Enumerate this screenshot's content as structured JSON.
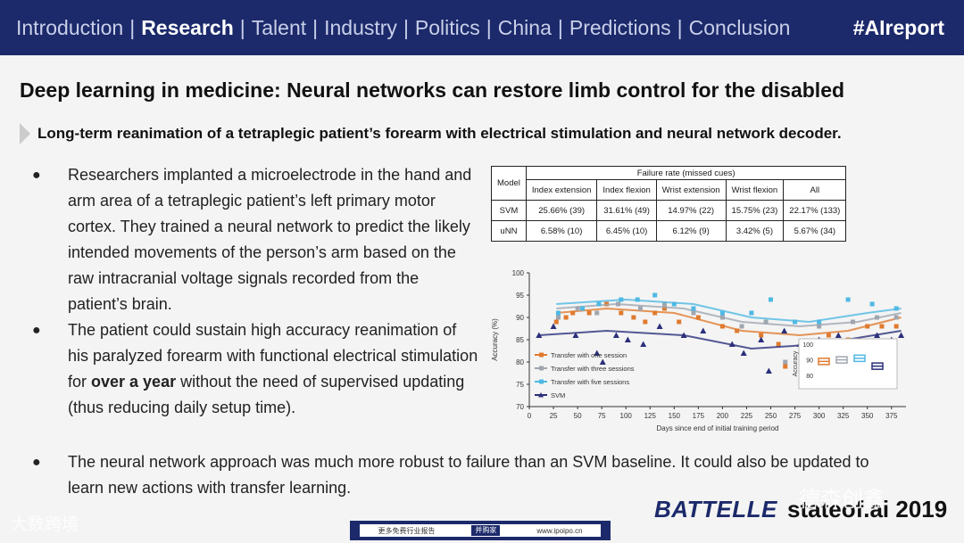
{
  "nav": {
    "items": [
      {
        "label": "Introduction",
        "active": false
      },
      {
        "label": "Research",
        "active": true
      },
      {
        "label": "Talent",
        "active": false
      },
      {
        "label": "Industry",
        "active": false
      },
      {
        "label": "Politics",
        "active": false
      },
      {
        "label": "China",
        "active": false
      },
      {
        "label": "Predictions",
        "active": false
      },
      {
        "label": "Conclusion",
        "active": false
      }
    ],
    "hashtag": "#AIreport"
  },
  "title": "Deep learning in medicine: Neural networks can restore limb control for the disabled",
  "subtitle": "Long-term reanimation of a tetraplegic patient’s forearm with electrical stimulation and neural network decoder.",
  "bullets": [
    {
      "text": "Researchers implanted a microelectrode in the hand and arm area of a tetraplegic patient’s left primary motor cortex. They trained a neural network to predict the likely intended movements of the person’s arm based on the raw intracranial voltage signals recorded from the patient’s brain."
    },
    {
      "pre": "The patient could sustain high accuracy reanimation of his paralyzed forearm with functional electrical stimulation for ",
      "bold": "over a year",
      "post": " without the need of supervised updating (thus reducing daily setup time)."
    },
    {
      "text": "The neural network approach was much more robust to failure than an SVM baseline. It could also be updated to learn new actions with transfer learning."
    }
  ],
  "table": {
    "model_header": "Model",
    "group_header": "Failure rate (missed cues)",
    "columns": [
      "Index extension",
      "Index flexion",
      "Wrist extension",
      "Wrist flexion",
      "All"
    ],
    "rows": [
      {
        "model": "SVM",
        "values": [
          "25.66% (39)",
          "31.61% (49)",
          "14.97% (22)",
          "15.75% (23)",
          "22.17% (133)"
        ]
      },
      {
        "model": "uNN",
        "values": [
          "6.58% (10)",
          "6.45% (10)",
          "6.12% (9)",
          "3.42% (5)",
          "5.67% (34)"
        ]
      }
    ]
  },
  "chart_data": {
    "type": "scatter",
    "xlabel": "Days since end of initial training period",
    "ylabel": "Accuracy (%)",
    "xticks": [
      0,
      25,
      50,
      75,
      100,
      125,
      150,
      175,
      200,
      225,
      250,
      275,
      300,
      325,
      350,
      375
    ],
    "yticks": [
      70,
      75,
      80,
      85,
      90,
      95,
      100
    ],
    "xlim": [
      0,
      390
    ],
    "ylim": [
      70,
      100
    ],
    "series": [
      {
        "name": "Transfer with one session",
        "color": "#e07a2e",
        "points": [
          [
            28,
            89
          ],
          [
            38,
            90
          ],
          [
            45,
            91
          ],
          [
            62,
            91
          ],
          [
            80,
            93
          ],
          [
            95,
            91
          ],
          [
            108,
            90
          ],
          [
            120,
            89
          ],
          [
            130,
            91
          ],
          [
            140,
            92
          ],
          [
            155,
            89
          ],
          [
            175,
            90
          ],
          [
            200,
            88
          ],
          [
            215,
            87
          ],
          [
            240,
            86
          ],
          [
            258,
            84
          ],
          [
            265,
            79
          ],
          [
            285,
            84
          ],
          [
            310,
            86
          ],
          [
            330,
            85
          ],
          [
            350,
            88
          ],
          [
            365,
            88
          ],
          [
            380,
            88
          ]
        ],
        "trend": [
          [
            28,
            91
          ],
          [
            80,
            92
          ],
          [
            150,
            91
          ],
          [
            220,
            87
          ],
          [
            280,
            86
          ],
          [
            330,
            87
          ],
          [
            385,
            90
          ]
        ]
      },
      {
        "name": "Transfer with three sessions",
        "color": "#a0a6b0",
        "points": [
          [
            30,
            90
          ],
          [
            50,
            92
          ],
          [
            70,
            91
          ],
          [
            92,
            93
          ],
          [
            115,
            92
          ],
          [
            140,
            93
          ],
          [
            170,
            91
          ],
          [
            200,
            90
          ],
          [
            220,
            88
          ],
          [
            245,
            89
          ],
          [
            265,
            80
          ],
          [
            300,
            88
          ],
          [
            335,
            89
          ],
          [
            360,
            90
          ],
          [
            380,
            90
          ]
        ],
        "trend": [
          [
            28,
            92
          ],
          [
            90,
            93
          ],
          [
            160,
            92
          ],
          [
            220,
            89
          ],
          [
            280,
            88
          ],
          [
            340,
            89
          ],
          [
            385,
            91
          ]
        ]
      },
      {
        "name": "Transfer with five sessions",
        "color": "#4fb9e3",
        "points": [
          [
            30,
            91
          ],
          [
            55,
            92
          ],
          [
            72,
            93
          ],
          [
            95,
            94
          ],
          [
            112,
            94
          ],
          [
            130,
            95
          ],
          [
            150,
            93
          ],
          [
            170,
            92
          ],
          [
            200,
            91
          ],
          [
            230,
            91
          ],
          [
            250,
            94
          ],
          [
            275,
            89
          ],
          [
            300,
            89
          ],
          [
            330,
            94
          ],
          [
            355,
            93
          ],
          [
            380,
            92
          ]
        ],
        "trend": [
          [
            28,
            93
          ],
          [
            100,
            94
          ],
          [
            170,
            93
          ],
          [
            230,
            90
          ],
          [
            290,
            89
          ],
          [
            350,
            91
          ],
          [
            385,
            92
          ]
        ]
      },
      {
        "name": "SVM",
        "color": "#2b2f7a",
        "points": [
          [
            10,
            86
          ],
          [
            25,
            88
          ],
          [
            48,
            86
          ],
          [
            70,
            82
          ],
          [
            76,
            80
          ],
          [
            90,
            86
          ],
          [
            102,
            85
          ],
          [
            118,
            84
          ],
          [
            135,
            88
          ],
          [
            160,
            86
          ],
          [
            180,
            87
          ],
          [
            210,
            84
          ],
          [
            222,
            82
          ],
          [
            240,
            85
          ],
          [
            248,
            78
          ],
          [
            264,
            87
          ],
          [
            280,
            84
          ],
          [
            300,
            85
          ],
          [
            320,
            86
          ],
          [
            330,
            82
          ],
          [
            345,
            84
          ],
          [
            360,
            86
          ],
          [
            375,
            85
          ],
          [
            385,
            86
          ]
        ],
        "trend": [
          [
            10,
            86
          ],
          [
            80,
            87
          ],
          [
            160,
            86
          ],
          [
            230,
            83
          ],
          [
            300,
            84
          ],
          [
            385,
            87
          ]
        ]
      }
    ],
    "inset": {
      "ylabel": "Accuracy",
      "yticks": [
        80,
        90,
        100
      ],
      "boxes": [
        {
          "color": "#e07a2e",
          "median": 89
        },
        {
          "color": "#a0a6b0",
          "median": 90
        },
        {
          "color": "#4fb9e3",
          "median": 91
        },
        {
          "color": "#2b2f7a",
          "median": 86
        }
      ]
    }
  },
  "branding": {
    "battelle": "BATTELLE",
    "stateof": "stateof.ai 2019"
  },
  "watermarks": {
    "left": "大数跨境",
    "right": "德森创鑫"
  },
  "footer": {
    "left": "更多免费行业报告",
    "button": "并购家",
    "right": "www.ipoipo.cn"
  }
}
